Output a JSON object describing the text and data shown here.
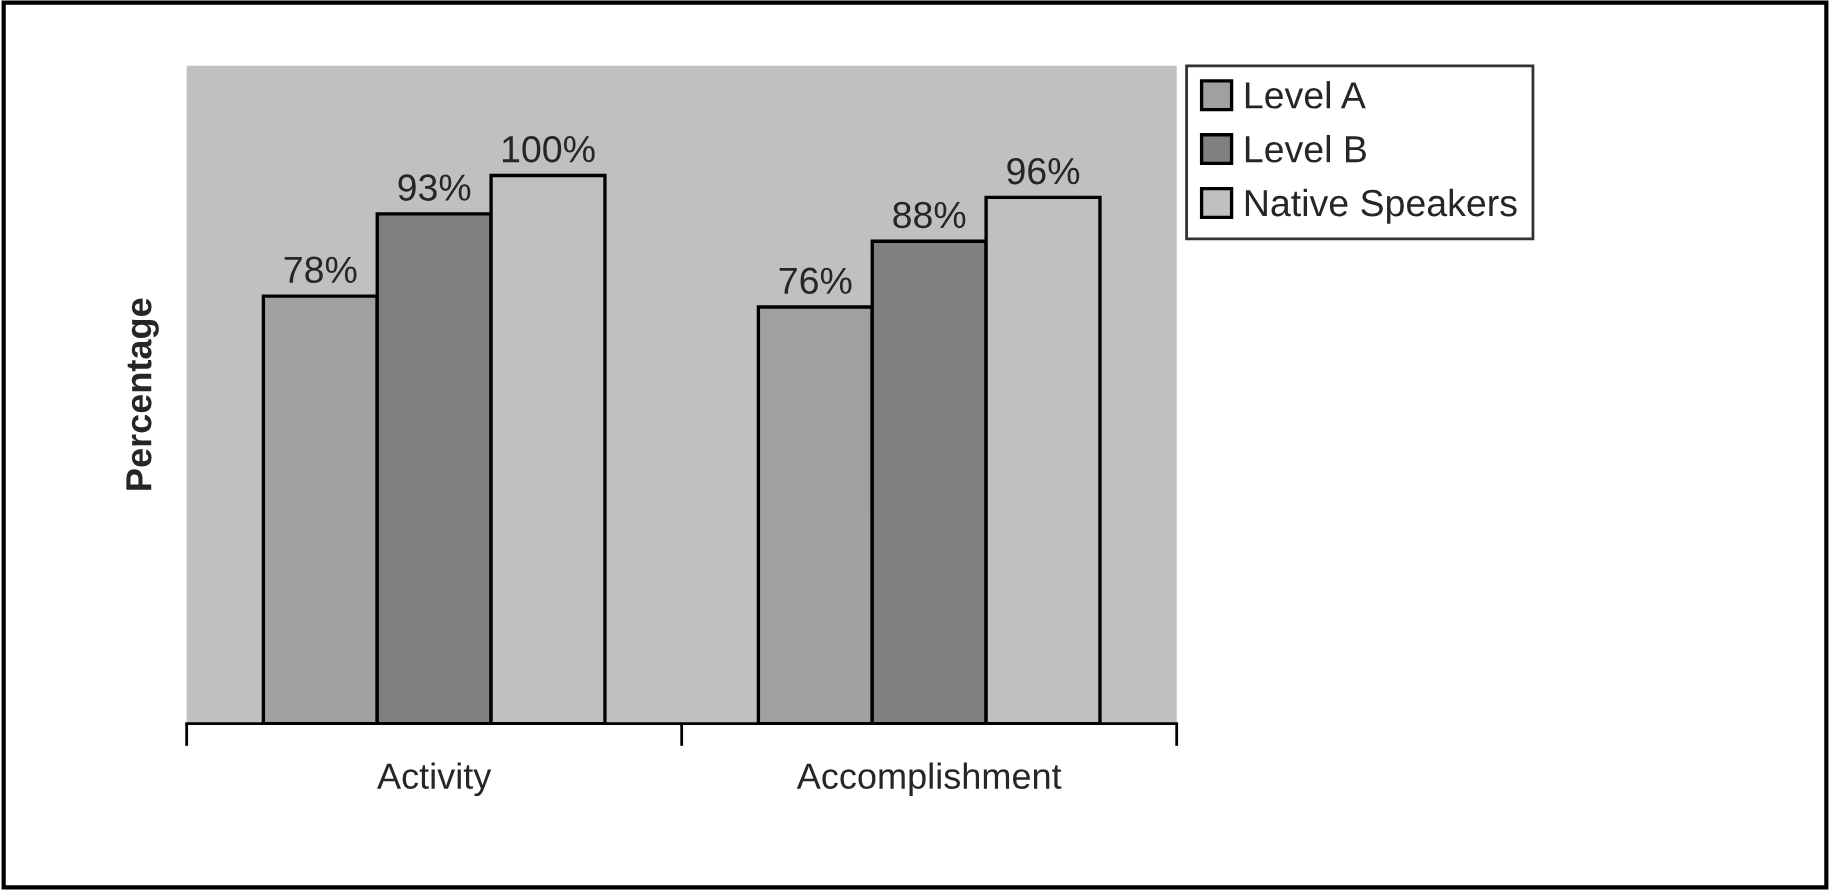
{
  "chart_data": {
    "type": "bar",
    "ylabel": "Percentage",
    "categories": [
      "Activity",
      "Accomplishment"
    ],
    "series": [
      {
        "name": "Level A",
        "color": "#a0a0a0",
        "values": [
          78,
          76
        ],
        "value_labels": [
          "78%",
          "76%"
        ]
      },
      {
        "name": "Level B",
        "color": "#808080",
        "values": [
          93,
          88
        ],
        "value_labels": [
          "93%",
          "88%"
        ]
      },
      {
        "name": "Native Speakers",
        "color": "#c0c0c0",
        "values": [
          100,
          96
        ],
        "value_labels": [
          "100%",
          "96%"
        ]
      }
    ],
    "grid": false,
    "legend": "top right"
  }
}
